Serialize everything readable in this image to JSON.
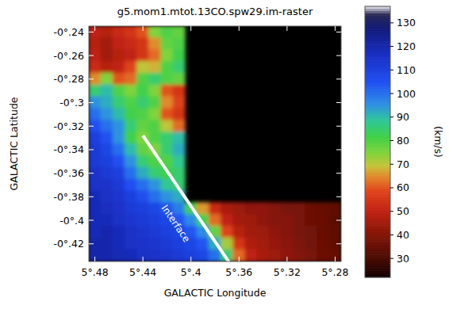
{
  "chart_data": {
    "type": "heatmap",
    "title": "g5.mom1.mtot.13CO.spw29.im-raster",
    "x_label": "GALACTIC Longitude",
    "y_label": "GALACTIC Latitude",
    "x": [
      5.48,
      5.47,
      5.46,
      5.45,
      5.44,
      5.43,
      5.42,
      5.41,
      5.4,
      5.39,
      5.38,
      5.37,
      5.36,
      5.35,
      5.34,
      5.33,
      5.32,
      5.31,
      5.3,
      5.29,
      5.28
    ],
    "y": [
      -0.24,
      -0.25,
      -0.26,
      -0.27,
      -0.28,
      -0.29,
      -0.3,
      -0.31,
      -0.32,
      -0.33,
      -0.34,
      -0.35,
      -0.36,
      -0.37,
      -0.38,
      -0.39,
      -0.4,
      -0.41,
      -0.42,
      -0.43
    ],
    "cells": [
      [
        50,
        48,
        52,
        55,
        60,
        75,
        80,
        78,
        null,
        null,
        null,
        null,
        null,
        null,
        null,
        null,
        null,
        null,
        null,
        null,
        null
      ],
      [
        48,
        45,
        50,
        52,
        55,
        65,
        78,
        80,
        null,
        null,
        null,
        null,
        null,
        null,
        null,
        null,
        null,
        null,
        null,
        null,
        null
      ],
      [
        50,
        45,
        48,
        50,
        55,
        62,
        75,
        82,
        null,
        null,
        null,
        null,
        null,
        null,
        null,
        null,
        null,
        null,
        null,
        null,
        null
      ],
      [
        52,
        48,
        50,
        58,
        70,
        68,
        80,
        85,
        null,
        null,
        null,
        null,
        null,
        null,
        null,
        null,
        null,
        null,
        null,
        null,
        null
      ],
      [
        65,
        75,
        60,
        62,
        80,
        85,
        80,
        78,
        null,
        null,
        null,
        null,
        null,
        null,
        null,
        null,
        null,
        null,
        null,
        null,
        null
      ],
      [
        85,
        90,
        80,
        75,
        82,
        75,
        60,
        55,
        null,
        null,
        null,
        null,
        null,
        null,
        null,
        null,
        null,
        null,
        null,
        null,
        null
      ],
      [
        95,
        92,
        85,
        80,
        85,
        80,
        65,
        58,
        null,
        null,
        null,
        null,
        null,
        null,
        null,
        null,
        null,
        null,
        null,
        null,
        null
      ],
      [
        100,
        95,
        90,
        82,
        80,
        75,
        60,
        55,
        null,
        null,
        null,
        null,
        null,
        null,
        null,
        null,
        null,
        null,
        null,
        null,
        null
      ],
      [
        105,
        100,
        95,
        85,
        78,
        80,
        70,
        62,
        null,
        null,
        null,
        null,
        null,
        null,
        null,
        null,
        null,
        null,
        null,
        null,
        null
      ],
      [
        110,
        105,
        95,
        82,
        75,
        80,
        85,
        90,
        null,
        null,
        null,
        null,
        null,
        null,
        null,
        null,
        null,
        null,
        null,
        null,
        null
      ],
      [
        112,
        108,
        100,
        90,
        78,
        75,
        85,
        92,
        null,
        null,
        null,
        null,
        null,
        null,
        null,
        null,
        null,
        null,
        null,
        null,
        null
      ],
      [
        112,
        110,
        105,
        95,
        85,
        80,
        80,
        88,
        null,
        null,
        null,
        null,
        null,
        null,
        null,
        null,
        null,
        null,
        null,
        null,
        null
      ],
      [
        115,
        112,
        110,
        100,
        92,
        85,
        82,
        85,
        null,
        null,
        null,
        null,
        null,
        null,
        null,
        null,
        null,
        null,
        null,
        null,
        null
      ],
      [
        115,
        115,
        112,
        105,
        100,
        95,
        88,
        85,
        null,
        null,
        null,
        null,
        null,
        null,
        null,
        null,
        null,
        null,
        null,
        null,
        null
      ],
      [
        118,
        116,
        114,
        110,
        106,
        100,
        95,
        92,
        null,
        null,
        null,
        null,
        null,
        null,
        null,
        null,
        null,
        null,
        null,
        null,
        null
      ],
      [
        118,
        117,
        115,
        112,
        110,
        108,
        104,
        98,
        82,
        66,
        52,
        46,
        44,
        42,
        42,
        40,
        38,
        38,
        36,
        35,
        34
      ],
      [
        118,
        118,
        116,
        114,
        112,
        110,
        108,
        104,
        96,
        82,
        62,
        50,
        45,
        44,
        42,
        40,
        40,
        38,
        36,
        35,
        33
      ],
      [
        118,
        120,
        118,
        116,
        114,
        112,
        110,
        108,
        104,
        96,
        78,
        58,
        48,
        45,
        44,
        42,
        40,
        38,
        37,
        35,
        34
      ],
      [
        120,
        120,
        118,
        116,
        115,
        114,
        112,
        110,
        108,
        104,
        92,
        72,
        55,
        47,
        45,
        43,
        41,
        39,
        37,
        36,
        34
      ],
      [
        120,
        120,
        119,
        118,
        116,
        115,
        114,
        112,
        110,
        108,
        100,
        85,
        62,
        50,
        46,
        44,
        42,
        40,
        38,
        36,
        35
      ]
    ],
    "xlim": [
      5.485,
      5.275
    ],
    "ylim": [
      -0.435,
      -0.235
    ],
    "xticks": [
      {
        "value": 5.48,
        "label": "5°.48"
      },
      {
        "value": 5.44,
        "label": "5°.44"
      },
      {
        "value": 5.4,
        "label": "5°.4"
      },
      {
        "value": 5.36,
        "label": "5°.36"
      },
      {
        "value": 5.32,
        "label": "5°.32"
      },
      {
        "value": 5.28,
        "label": "5°.28"
      }
    ],
    "yticks": [
      {
        "value": -0.24,
        "label": "-0°.24"
      },
      {
        "value": -0.26,
        "label": "-0°.26"
      },
      {
        "value": -0.28,
        "label": "-0°.28"
      },
      {
        "value": -0.3,
        "label": "-0°.3"
      },
      {
        "value": -0.32,
        "label": "-0°.32"
      },
      {
        "value": -0.34,
        "label": "-0°.34"
      },
      {
        "value": -0.36,
        "label": "-0°.36"
      },
      {
        "value": -0.38,
        "label": "-0°.38"
      },
      {
        "value": -0.4,
        "label": "-0°.4"
      },
      {
        "value": -0.42,
        "label": "-0°.42"
      }
    ],
    "colorbar": {
      "label": "(km/s)",
      "lim": [
        22,
        137
      ],
      "ticks": [
        30,
        40,
        50,
        60,
        70,
        80,
        90,
        100,
        110,
        120,
        130
      ]
    },
    "interface_line": {
      "x": [
        5.44,
        5.368
      ],
      "y": [
        -0.328,
        -0.436
      ]
    },
    "annotations": [
      {
        "text": "Interface",
        "x": 5.413,
        "y": -0.403
      }
    ]
  }
}
